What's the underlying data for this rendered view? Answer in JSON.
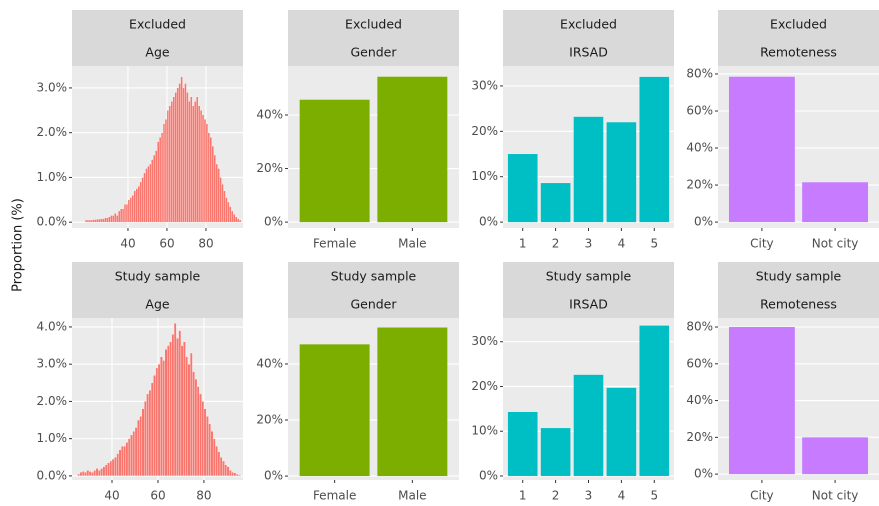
{
  "ylabel": "Proportion (%)",
  "chart_data": [
    {
      "type": "histogram",
      "strips": [
        "Excluded",
        "Age"
      ],
      "color": "#F8766D",
      "bins": [
        18,
        19,
        20,
        21,
        22,
        23,
        24,
        25,
        26,
        27,
        28,
        29,
        30,
        31,
        32,
        33,
        34,
        35,
        36,
        37,
        38,
        39,
        40,
        41,
        42,
        43,
        44,
        45,
        46,
        47,
        48,
        49,
        50,
        51,
        52,
        53,
        54,
        55,
        56,
        57,
        58,
        59,
        60,
        61,
        62,
        63,
        64,
        65,
        66,
        67,
        68,
        69,
        70,
        71,
        72,
        73,
        74,
        75,
        76,
        77,
        78,
        79,
        80,
        81,
        82,
        83,
        84,
        85,
        86,
        87,
        88,
        89,
        90,
        91,
        92,
        93,
        94,
        95,
        96,
        97,
        98
      ],
      "values": [
        0.05,
        0.05,
        0.05,
        0.05,
        0.06,
        0.06,
        0.07,
        0.07,
        0.08,
        0.08,
        0.1,
        0.1,
        0.12,
        0.15,
        0.15,
        0.2,
        0.15,
        0.25,
        0.3,
        0.3,
        0.4,
        0.4,
        0.5,
        0.55,
        0.6,
        0.7,
        0.75,
        0.8,
        0.9,
        1.0,
        1.1,
        1.2,
        1.25,
        1.3,
        1.4,
        1.5,
        1.6,
        1.8,
        1.9,
        2.0,
        2.2,
        2.3,
        2.5,
        2.6,
        2.7,
        2.8,
        2.9,
        3.0,
        3.1,
        3.25,
        3.0,
        3.1,
        2.9,
        2.7,
        2.8,
        2.6,
        2.7,
        2.8,
        2.6,
        2.5,
        2.4,
        2.3,
        2.2,
        2.0,
        1.9,
        1.7,
        1.5,
        1.3,
        1.2,
        1.0,
        0.85,
        0.7,
        0.55,
        0.45,
        0.35,
        0.25,
        0.18,
        0.12,
        0.08,
        0.05
      ],
      "xlim": [
        11.3,
        99
      ],
      "xticks": [
        40,
        60,
        80
      ],
      "ylim": [
        -0.13,
        3.49
      ],
      "yticks": [
        {
          "value": 0,
          "label": "0.0%"
        },
        {
          "value": 1,
          "label": "1.0%"
        },
        {
          "value": 2,
          "label": "2.0%"
        },
        {
          "value": 3,
          "label": "3.0%"
        }
      ]
    },
    {
      "type": "bar",
      "strips": [
        "Excluded",
        "Gender"
      ],
      "color": "#7CAE00",
      "categories": [
        "Female",
        "Male"
      ],
      "values": [
        45.7,
        54.3
      ],
      "ylim": [
        -2.2,
        58.3
      ],
      "yticks": [
        {
          "value": 0,
          "label": "0%"
        },
        {
          "value": 20,
          "label": "20%"
        },
        {
          "value": 40,
          "label": "40%"
        }
      ]
    },
    {
      "type": "bar",
      "strips": [
        "Excluded",
        "IRSAD"
      ],
      "color": "#00BFC4",
      "categories": [
        "1",
        "2",
        "3",
        "4",
        "5"
      ],
      "values": [
        15.0,
        8.6,
        23.2,
        22.0,
        32.0
      ],
      "ylim": [
        -1.3,
        34.4
      ],
      "yticks": [
        {
          "value": 0,
          "label": "0%"
        },
        {
          "value": 10,
          "label": "10%"
        },
        {
          "value": 20,
          "label": "20%"
        },
        {
          "value": 30,
          "label": "30%"
        }
      ]
    },
    {
      "type": "bar",
      "strips": [
        "Excluded",
        "Remoteness"
      ],
      "color": "#C77CFF",
      "categories": [
        "City",
        "Not city"
      ],
      "values": [
        78.5,
        21.5
      ],
      "ylim": [
        -3.2,
        84.3
      ],
      "yticks": [
        {
          "value": 0,
          "label": "0%"
        },
        {
          "value": 20,
          "label": "20%"
        },
        {
          "value": 40,
          "label": "40%"
        },
        {
          "value": 60,
          "label": "60%"
        },
        {
          "value": 80,
          "label": "80%"
        }
      ]
    },
    {
      "type": "histogram",
      "strips": [
        "Study sample",
        "Age"
      ],
      "color": "#F8766D",
      "bins": [
        25,
        26,
        27,
        28,
        29,
        30,
        31,
        32,
        33,
        34,
        35,
        36,
        37,
        38,
        39,
        40,
        41,
        42,
        43,
        44,
        45,
        46,
        47,
        48,
        49,
        50,
        51,
        52,
        53,
        54,
        55,
        56,
        57,
        58,
        59,
        60,
        61,
        62,
        63,
        64,
        65,
        66,
        67,
        68,
        69,
        70,
        71,
        72,
        73,
        74,
        75,
        76,
        77,
        78,
        79,
        80,
        81,
        82,
        83,
        84,
        85,
        86,
        87,
        88,
        89,
        90,
        91,
        92,
        93,
        94,
        95,
        96
      ],
      "values": [
        0.05,
        0.1,
        0.12,
        0.1,
        0.15,
        0.12,
        0.1,
        0.15,
        0.2,
        0.15,
        0.2,
        0.25,
        0.3,
        0.35,
        0.4,
        0.45,
        0.5,
        0.6,
        0.7,
        0.8,
        0.8,
        0.9,
        1.0,
        1.1,
        1.2,
        1.3,
        1.5,
        1.6,
        1.8,
        2.0,
        2.2,
        2.3,
        2.5,
        2.7,
        2.9,
        3.0,
        3.2,
        3.1,
        3.4,
        3.5,
        3.6,
        3.8,
        4.1,
        3.7,
        3.9,
        3.5,
        3.6,
        3.2,
        3.0,
        3.3,
        2.8,
        2.6,
        2.4,
        2.2,
        2.0,
        1.8,
        1.6,
        1.4,
        1.2,
        1.0,
        0.8,
        0.65,
        0.5,
        0.4,
        0.3,
        0.25,
        0.15,
        0.1,
        0.08,
        0.05,
        0.03
      ],
      "xlim": [
        22.6,
        97
      ],
      "xticks": [
        40,
        60,
        80
      ],
      "ylim": [
        -0.11,
        4.24
      ],
      "yticks": [
        {
          "value": 0,
          "label": "0.0%"
        },
        {
          "value": 1,
          "label": "1.0%"
        },
        {
          "value": 2,
          "label": "2.0%"
        },
        {
          "value": 3,
          "label": "3.0%"
        },
        {
          "value": 4,
          "label": "4.0%"
        }
      ]
    },
    {
      "type": "bar",
      "strips": [
        "Study sample",
        "Gender"
      ],
      "color": "#7CAE00",
      "categories": [
        "Female",
        "Male"
      ],
      "values": [
        47,
        53
      ],
      "ylim": [
        -1.4,
        56.4
      ],
      "yticks": [
        {
          "value": 0,
          "label": "0%"
        },
        {
          "value": 20,
          "label": "20%"
        },
        {
          "value": 40,
          "label": "40%"
        }
      ]
    },
    {
      "type": "bar",
      "strips": [
        "Study sample",
        "IRSAD"
      ],
      "color": "#00BFC4",
      "categories": [
        "1",
        "2",
        "3",
        "4",
        "5"
      ],
      "values": [
        14.3,
        10.7,
        22.6,
        19.7,
        33.6
      ],
      "ylim": [
        -0.9,
        35.3
      ],
      "yticks": [
        {
          "value": 0,
          "label": "0%"
        },
        {
          "value": 10,
          "label": "10%"
        },
        {
          "value": 20,
          "label": "20%"
        },
        {
          "value": 30,
          "label": "30%"
        }
      ]
    },
    {
      "type": "bar",
      "strips": [
        "Study sample",
        "Remoteness"
      ],
      "color": "#C77CFF",
      "categories": [
        "City",
        "Not city"
      ],
      "values": [
        80,
        20
      ],
      "ylim": [
        -3.2,
        84.9
      ],
      "yticks": [
        {
          "value": 0,
          "label": "0%"
        },
        {
          "value": 20,
          "label": "20%"
        },
        {
          "value": 40,
          "label": "40%"
        },
        {
          "value": 60,
          "label": "60%"
        },
        {
          "value": 80,
          "label": "80%"
        }
      ]
    }
  ]
}
